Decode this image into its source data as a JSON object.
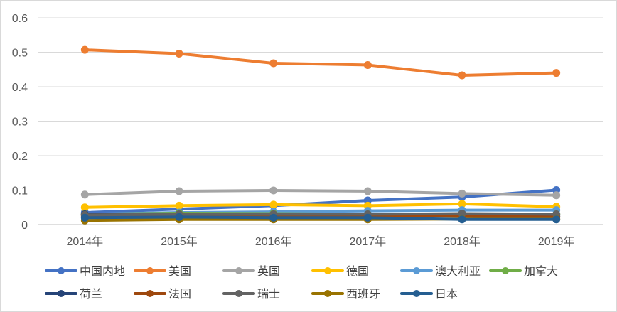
{
  "chart_data": {
    "type": "line",
    "title": "",
    "xlabel": "",
    "ylabel": "",
    "categories": [
      "2014年",
      "2015年",
      "2016年",
      "2017年",
      "2018年",
      "2019年"
    ],
    "ylim": [
      0,
      0.6
    ],
    "yticks": [
      0,
      0.1,
      0.2,
      0.3,
      0.4,
      0.5,
      0.6
    ],
    "ytick_labels": [
      "0",
      "0.1",
      "0.2",
      "0.3",
      "0.4",
      "0.5",
      "0.6"
    ],
    "grid": true,
    "legend_position": "bottom",
    "series": [
      {
        "name": "中国内地",
        "color": "#4472C4",
        "values": [
          0.035,
          0.045,
          0.055,
          0.07,
          0.08,
          0.1
        ]
      },
      {
        "name": "美国",
        "color": "#ED7D31",
        "values": [
          0.507,
          0.496,
          0.468,
          0.463,
          0.433,
          0.44
        ]
      },
      {
        "name": "英国",
        "color": "#A5A5A5",
        "values": [
          0.087,
          0.097,
          0.099,
          0.097,
          0.09,
          0.085
        ]
      },
      {
        "name": "德国",
        "color": "#FFC000",
        "values": [
          0.05,
          0.055,
          0.058,
          0.055,
          0.06,
          0.052
        ]
      },
      {
        "name": "澳大利亚",
        "color": "#5B9BD5",
        "values": [
          0.03,
          0.035,
          0.037,
          0.04,
          0.042,
          0.042
        ]
      },
      {
        "name": "加拿大",
        "color": "#70AD47",
        "values": [
          0.03,
          0.033,
          0.032,
          0.03,
          0.03,
          0.03
        ]
      },
      {
        "name": "荷兰",
        "color": "#264478",
        "values": [
          0.03,
          0.028,
          0.029,
          0.028,
          0.026,
          0.024
        ]
      },
      {
        "name": "法国",
        "color": "#9E480E",
        "values": [
          0.025,
          0.026,
          0.027,
          0.026,
          0.024,
          0.022
        ]
      },
      {
        "name": "瑞士",
        "color": "#636363",
        "values": [
          0.028,
          0.03,
          0.03,
          0.03,
          0.032,
          0.03
        ]
      },
      {
        "name": "西班牙",
        "color": "#997300",
        "values": [
          0.012,
          0.015,
          0.015,
          0.015,
          0.016,
          0.016
        ]
      },
      {
        "name": "日本",
        "color": "#255E91",
        "values": [
          0.02,
          0.022,
          0.02,
          0.02,
          0.015,
          0.015
        ]
      }
    ]
  }
}
